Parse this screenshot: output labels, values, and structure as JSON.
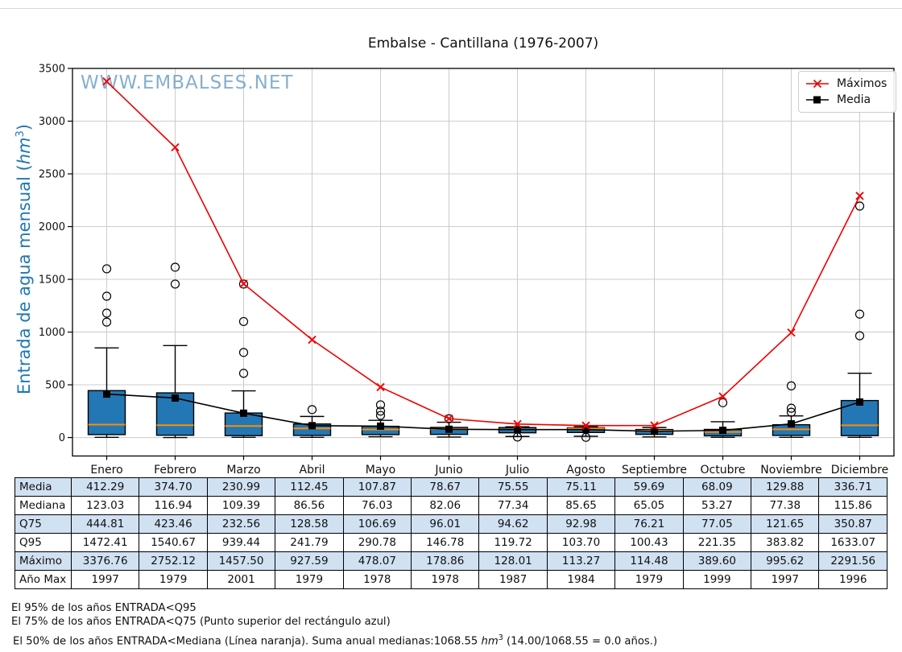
{
  "title": "Embalse - Cantillana (1976-2007)",
  "watermark": "WWW.EMBALSES.NET",
  "y_axis": {
    "label_text": "Entrada de agua mensual (",
    "label_unit": "hm",
    "label_exp": "3",
    "label_close": ")"
  },
  "legend": {
    "maximos": "Máximos",
    "media": "Media"
  },
  "chart_data": {
    "type": "box+line",
    "title": "Embalse - Cantillana (1976-2007)",
    "ylabel": "Entrada de agua mensual (hm3)",
    "categories": [
      "Enero",
      "Febrero",
      "Marzo",
      "Abril",
      "Mayo",
      "Junio",
      "Julio",
      "Agosto",
      "Septiembre",
      "Octubre",
      "Noviembre",
      "Diciembre"
    ],
    "ylim": [
      -175,
      3500
    ],
    "yticks": [
      0,
      500,
      1000,
      1500,
      2000,
      2500,
      3000,
      3500
    ],
    "grid": true,
    "legend_position": "top-right",
    "colors": {
      "maximos_line": "#ee0000",
      "media_line": "#000000",
      "box_fill": "#2377b4",
      "box_edge": "#000000",
      "median_line": "#ff8c00",
      "grid": "#cccccc",
      "watermark": "#79a7c9",
      "ylabel": "#1f77b4",
      "table_shade": "#d0e1f2"
    },
    "series": [
      {
        "name": "Máximos",
        "marker": "x",
        "color": "#ee0000",
        "values": [
          3376.76,
          2752.12,
          1457.5,
          927.59,
          478.07,
          178.86,
          128.01,
          113.27,
          114.48,
          389.6,
          995.62,
          2291.56
        ]
      },
      {
        "name": "Media",
        "marker": "square",
        "color": "#000000",
        "values": [
          412.29,
          374.7,
          230.99,
          112.45,
          107.87,
          78.67,
          75.55,
          75.11,
          59.69,
          68.09,
          129.88,
          336.71
        ]
      }
    ],
    "box": {
      "median": [
        123.03,
        116.94,
        109.39,
        86.56,
        76.03,
        82.06,
        77.34,
        85.65,
        65.05,
        53.27,
        77.38,
        115.86
      ],
      "q3": [
        444.81,
        423.46,
        232.56,
        128.58,
        106.69,
        96.01,
        94.62,
        92.98,
        76.21,
        77.05,
        121.65,
        350.87
      ],
      "q95": [
        1472.41,
        1540.67,
        939.44,
        241.79,
        290.78,
        146.78,
        119.72,
        103.7,
        100.43,
        221.35,
        383.82,
        1633.07
      ],
      "q1_est": [
        28,
        22,
        18,
        20,
        28,
        30,
        45,
        48,
        30,
        16,
        20,
        18
      ],
      "whisker_low_est": [
        2,
        0,
        2,
        2,
        8,
        5,
        10,
        12,
        6,
        2,
        2,
        2
      ],
      "whisker_high_est": [
        850,
        872,
        443,
        200,
        163,
        145,
        102,
        103,
        95,
        150,
        205,
        610
      ],
      "outliers_est": [
        [
          1600,
          1340,
          1180,
          1095
        ],
        [
          1615,
          1455
        ],
        [
          1455,
          1100,
          807,
          609
        ],
        [
          265
        ],
        [
          310,
          250,
          210
        ],
        [
          178
        ],
        [
          5
        ],
        [
          2
        ],
        [],
        [
          330
        ],
        [
          490,
          278,
          240
        ],
        [
          2195,
          1170,
          965
        ]
      ]
    }
  },
  "table": {
    "columns": [
      "Enero",
      "Febrero",
      "Marzo",
      "Abril",
      "Mayo",
      "Junio",
      "Julio",
      "Agosto",
      "Septiembre",
      "Octubre",
      "Noviembre",
      "Diciembre"
    ],
    "rows": [
      {
        "label": "Media",
        "shaded": true,
        "values": [
          "412.29",
          "374.70",
          "230.99",
          "112.45",
          "107.87",
          "78.67",
          "75.55",
          "75.11",
          "59.69",
          "68.09",
          "129.88",
          "336.71"
        ]
      },
      {
        "label": "Mediana",
        "shaded": false,
        "values": [
          "123.03",
          "116.94",
          "109.39",
          "86.56",
          "76.03",
          "82.06",
          "77.34",
          "85.65",
          "65.05",
          "53.27",
          "77.38",
          "115.86"
        ]
      },
      {
        "label": "Q75",
        "shaded": true,
        "values": [
          "444.81",
          "423.46",
          "232.56",
          "128.58",
          "106.69",
          "96.01",
          "94.62",
          "92.98",
          "76.21",
          "77.05",
          "121.65",
          "350.87"
        ]
      },
      {
        "label": "Q95",
        "shaded": false,
        "values": [
          "1472.41",
          "1540.67",
          "939.44",
          "241.79",
          "290.78",
          "146.78",
          "119.72",
          "103.70",
          "100.43",
          "221.35",
          "383.82",
          "1633.07"
        ]
      },
      {
        "label": "Máximo",
        "shaded": true,
        "values": [
          "3376.76",
          "2752.12",
          "1457.50",
          "927.59",
          "478.07",
          "178.86",
          "128.01",
          "113.27",
          "114.48",
          "389.60",
          "995.62",
          "2291.56"
        ]
      },
      {
        "label": "Año Max",
        "shaded": false,
        "values": [
          "1997",
          "1979",
          "2001",
          "1979",
          "1978",
          "1978",
          "1987",
          "1984",
          "1979",
          "1999",
          "1997",
          "1996"
        ]
      }
    ]
  },
  "footer": {
    "line1": "El 95% de los años ENTRADA<Q95",
    "line2": "El 75% de los años ENTRADA<Q75 (Punto superior del rectángulo azul)",
    "line3_pre": "El 50% de los años ENTRADA<Mediana (Línea naranja). Suma anual medianas:1068.55 ",
    "line3_unit": "hm",
    "line3_exp": "3",
    "line3_post": " (14.00/1068.55 = 0.0 años.)"
  }
}
